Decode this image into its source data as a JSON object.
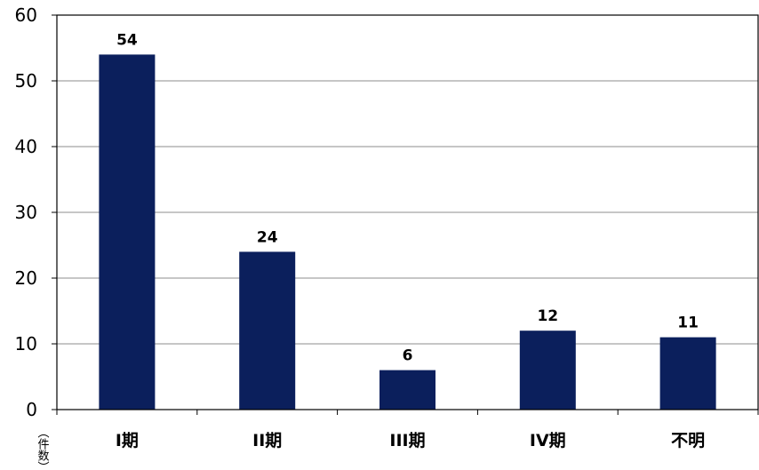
{
  "chart_data": {
    "type": "bar",
    "title": "",
    "xlabel": "",
    "ylabel": "（件数）",
    "categories": [
      "I期",
      "II期",
      "III期",
      "IV期",
      "不明"
    ],
    "values": [
      54,
      24,
      6,
      12,
      11
    ],
    "ylim": [
      0,
      60
    ],
    "yticks": [
      0,
      10,
      20,
      30,
      40,
      50,
      60
    ],
    "grid": true,
    "legend": "none",
    "colors": {
      "bar": "#0b1f5c",
      "grid": "#8c8c8c",
      "axis": "#000000"
    }
  }
}
